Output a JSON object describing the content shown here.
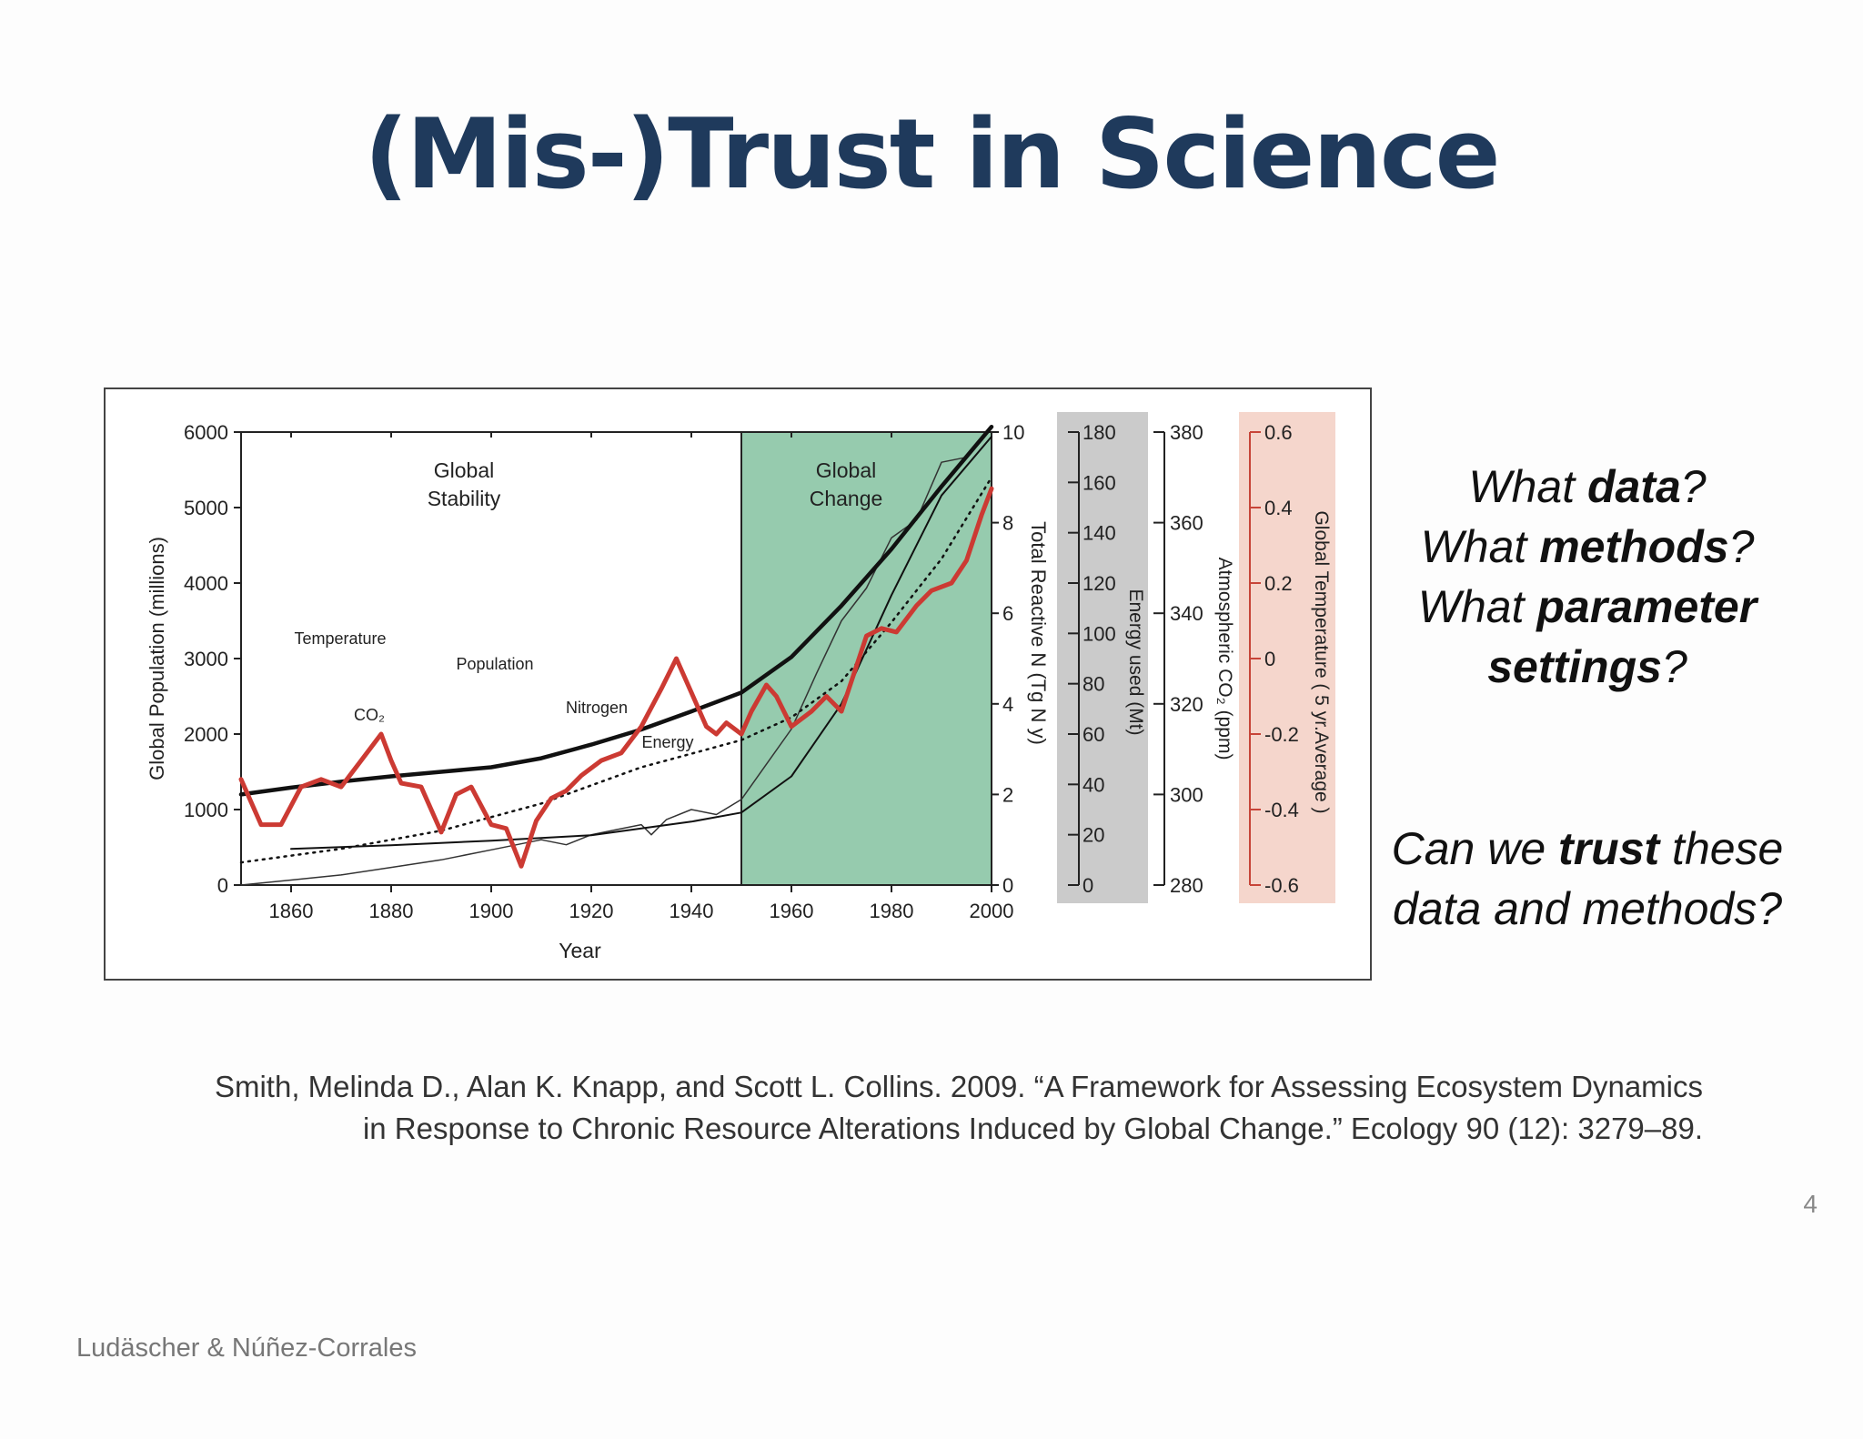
{
  "slide": {
    "title": "(Mis-)Trust in Science",
    "questions": [
      {
        "pre": "What ",
        "bold": "data",
        "post": "?"
      },
      {
        "pre": "What ",
        "bold": "methods",
        "post": "?"
      },
      {
        "pre": "What ",
        "bold": "parameter",
        "post": ""
      },
      {
        "pre": "",
        "bold": "settings",
        "post": "?"
      }
    ],
    "trust_question": [
      {
        "pre": "Can we ",
        "bold": "trust",
        "post": " these"
      },
      {
        "pre": "data and methods?",
        "bold": "",
        "post": ""
      }
    ],
    "citation": [
      "Smith, Melinda D., Alan K. Knapp, and Scott L. Collins. 2009. “A Framework for Assessing Ecosystem Dynamics",
      "in Response to Chronic Resource Alterations Induced by Global Change.” Ecology 90 (12): 3279–89."
    ],
    "page_number": "4",
    "footer": "Ludäscher & Núñez-Corrales"
  },
  "chart_data": {
    "type": "line",
    "x_label": "Year",
    "x_ticks": [
      "1860",
      "1880",
      "1900",
      "1920",
      "1940",
      "1960",
      "1980",
      "2000"
    ],
    "xlim": [
      1850,
      2000
    ],
    "regions": [
      {
        "label": [
          "Global",
          "Stability"
        ],
        "from": 1850,
        "to": 1950,
        "color": "#ffffff"
      },
      {
        "label": [
          "Global",
          "Change"
        ],
        "from": 1950,
        "to": 2000,
        "color": "#96cbae"
      }
    ],
    "axes": [
      {
        "id": "pop",
        "label": "Global Population (millions)",
        "ticks": [
          "0",
          "1000",
          "2000",
          "3000",
          "4000",
          "5000",
          "6000"
        ],
        "lim": [
          0,
          6000
        ]
      },
      {
        "id": "n",
        "label": "Total Reactive N (Tg N y)",
        "ticks": [
          "0",
          "2",
          "4",
          "6",
          "8",
          "10"
        ],
        "lim": [
          0,
          10
        ]
      },
      {
        "id": "energy",
        "label": "Energy used (Mt)",
        "ticks": [
          "0",
          "20",
          "40",
          "60",
          "80",
          "100",
          "120",
          "140",
          "160",
          "180"
        ],
        "lim": [
          0,
          180
        ],
        "band_color": "#cbcbcb"
      },
      {
        "id": "co2",
        "label": "Atmospheric CO₂ (ppm)",
        "ticks": [
          "280",
          "300",
          "320",
          "340",
          "360",
          "380"
        ],
        "lim": [
          280,
          380
        ]
      },
      {
        "id": "temp",
        "label": "Global Temperature ( 5 yr.Average )",
        "ticks": [
          "-0.6",
          "-0.4",
          "-0.2",
          "0",
          "0.2",
          "0.4",
          "0.6"
        ],
        "lim": [
          -0.6,
          0.6
        ],
        "band_color": "#f5d6cc",
        "color": "#c74438"
      }
    ],
    "series": [
      {
        "name": "Population",
        "axis": "pop",
        "style": "thick",
        "color": "#111111",
        "x": [
          1850,
          1860,
          1870,
          1880,
          1890,
          1900,
          1910,
          1920,
          1930,
          1940,
          1950,
          1960,
          1970,
          1980,
          1990,
          2000
        ],
        "y": [
          1200,
          1290,
          1370,
          1440,
          1500,
          1560,
          1680,
          1860,
          2060,
          2300,
          2550,
          3020,
          3700,
          4450,
          5280,
          6070
        ]
      },
      {
        "name": "CO₂",
        "axis": "co2",
        "style": "dotted",
        "color": "#111111",
        "x": [
          1850,
          1870,
          1890,
          1910,
          1920,
          1930,
          1940,
          1950,
          1960,
          1970,
          1980,
          1990,
          2000
        ],
        "y": [
          285,
          288,
          292,
          298,
          302,
          306,
          309,
          312,
          317,
          325,
          338,
          352,
          370
        ]
      },
      {
        "name": "Nitrogen",
        "axis": "n",
        "style": "thin",
        "color": "#111111",
        "x": [
          1860,
          1880,
          1900,
          1920,
          1940,
          1950,
          1960,
          1970,
          1980,
          1990,
          2000
        ],
        "y": [
          0.8,
          0.88,
          0.98,
          1.1,
          1.4,
          1.6,
          2.4,
          4.0,
          6.4,
          8.6,
          9.9
        ]
      },
      {
        "name": "Energy",
        "axis": "energy",
        "style": "jagged",
        "color": "#333333",
        "x": [
          1850,
          1860,
          1870,
          1880,
          1890,
          1900,
          1910,
          1915,
          1920,
          1925,
          1930,
          1932,
          1935,
          1940,
          1945,
          1950,
          1955,
          1960,
          1965,
          1970,
          1975,
          1980,
          1985,
          1990,
          1995,
          2000
        ],
        "y": [
          0,
          2,
          4,
          7,
          10,
          14,
          18,
          16,
          20,
          22,
          24,
          20,
          26,
          30,
          28,
          34,
          48,
          62,
          84,
          105,
          118,
          138,
          145,
          168,
          170,
          182
        ]
      },
      {
        "name": "Temperature",
        "axis": "temp",
        "style": "thick",
        "color": "#cc3a33",
        "x": [
          1850,
          1854,
          1858,
          1862,
          1866,
          1870,
          1874,
          1878,
          1880,
          1882,
          1886,
          1890,
          1893,
          1896,
          1900,
          1903,
          1906,
          1909,
          1912,
          1915,
          1918,
          1922,
          1926,
          1930,
          1934,
          1937,
          1940,
          1943,
          1945,
          1947,
          1950,
          1952,
          1955,
          1957,
          1960,
          1964,
          1967,
          1970,
          1972,
          1975,
          1978,
          1981,
          1985,
          1988,
          1992,
          1995,
          1998,
          2000
        ],
        "y": [
          -0.32,
          -0.44,
          -0.44,
          -0.34,
          -0.32,
          -0.34,
          -0.27,
          -0.2,
          -0.27,
          -0.33,
          -0.34,
          -0.46,
          -0.36,
          -0.34,
          -0.44,
          -0.45,
          -0.55,
          -0.43,
          -0.37,
          -0.35,
          -0.31,
          -0.27,
          -0.25,
          -0.18,
          -0.08,
          0.0,
          -0.09,
          -0.18,
          -0.2,
          -0.17,
          -0.2,
          -0.14,
          -0.07,
          -0.1,
          -0.18,
          -0.14,
          -0.1,
          -0.14,
          -0.06,
          0.06,
          0.08,
          0.07,
          0.14,
          0.18,
          0.2,
          0.26,
          0.38,
          0.45
        ]
      }
    ],
    "series_labels": [
      "Temperature",
      "Population",
      "CO₂",
      "Nitrogen",
      "Energy"
    ]
  }
}
